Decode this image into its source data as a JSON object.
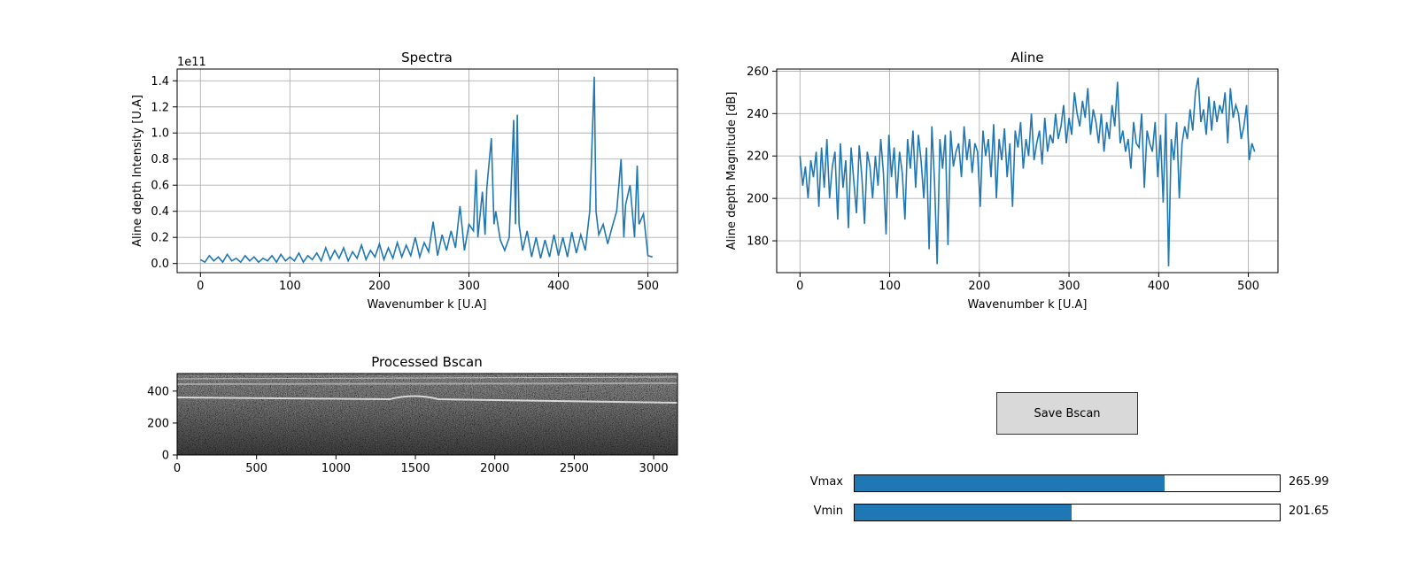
{
  "chart_data": [
    {
      "type": "line",
      "title": "Spectra",
      "xlabel": "Wavenumber k [U.A]",
      "ylabel": "Aline depth Intensity [U.A]",
      "y_offset_label": "1e11",
      "xlim": [
        -26,
        533
      ],
      "ylim": [
        -0.07,
        1.49
      ],
      "x_ticks": [
        0,
        100,
        200,
        300,
        400,
        500
      ],
      "y_ticks": [
        "0.0",
        "0.2",
        "0.4",
        "0.6",
        "0.8",
        "1.0",
        "1.2",
        "1.4"
      ],
      "grid": true,
      "series": [
        {
          "color": "#1f77b4",
          "x": [
            0,
            5,
            10,
            15,
            20,
            25,
            30,
            35,
            40,
            45,
            50,
            55,
            60,
            65,
            70,
            75,
            80,
            85,
            90,
            95,
            100,
            105,
            110,
            115,
            120,
            125,
            130,
            135,
            140,
            145,
            150,
            155,
            160,
            165,
            170,
            175,
            180,
            185,
            190,
            195,
            200,
            205,
            210,
            215,
            220,
            225,
            230,
            235,
            240,
            245,
            250,
            255,
            260,
            265,
            270,
            275,
            280,
            285,
            290,
            295,
            300,
            305,
            308,
            310,
            315,
            318,
            320,
            325,
            328,
            330,
            335,
            340,
            345,
            350,
            352,
            354,
            356,
            360,
            365,
            370,
            375,
            380,
            385,
            390,
            395,
            400,
            405,
            410,
            415,
            420,
            425,
            430,
            435,
            440,
            442,
            445,
            450,
            455,
            460,
            465,
            470,
            473,
            475,
            480,
            485,
            488,
            490,
            495,
            500,
            505
          ],
          "y": [
            0.03,
            0.01,
            0.06,
            0.02,
            0.05,
            0.01,
            0.07,
            0.02,
            0.04,
            0.01,
            0.06,
            0.02,
            0.05,
            0.01,
            0.04,
            0.02,
            0.06,
            0.01,
            0.07,
            0.02,
            0.05,
            0.02,
            0.08,
            0.01,
            0.06,
            0.03,
            0.08,
            0.02,
            0.12,
            0.03,
            0.1,
            0.04,
            0.12,
            0.02,
            0.09,
            0.04,
            0.14,
            0.03,
            0.1,
            0.05,
            0.15,
            0.03,
            0.12,
            0.04,
            0.16,
            0.05,
            0.14,
            0.06,
            0.2,
            0.05,
            0.16,
            0.09,
            0.32,
            0.06,
            0.22,
            0.1,
            0.25,
            0.12,
            0.44,
            0.1,
            0.3,
            0.25,
            0.72,
            0.2,
            0.55,
            0.22,
            0.58,
            0.96,
            0.3,
            0.4,
            0.18,
            0.1,
            0.2,
            1.1,
            0.3,
            1.14,
            0.3,
            0.1,
            0.25,
            0.05,
            0.2,
            0.04,
            0.18,
            0.05,
            0.22,
            0.06,
            0.2,
            0.05,
            0.24,
            0.08,
            0.22,
            0.1,
            0.4,
            1.43,
            0.4,
            0.22,
            0.3,
            0.15,
            0.28,
            0.4,
            0.8,
            0.2,
            0.45,
            0.6,
            0.2,
            0.75,
            0.3,
            0.38,
            0.06,
            0.05
          ]
        }
      ]
    },
    {
      "type": "line",
      "title": "Aline",
      "xlabel": "Wavenumber k [U.A]",
      "ylabel": "Aline depth Magnitude [dB]",
      "xlim": [
        -26,
        533
      ],
      "ylim": [
        165,
        261
      ],
      "x_ticks": [
        0,
        100,
        200,
        300,
        400,
        500
      ],
      "y_ticks": [
        "180",
        "200",
        "220",
        "240",
        "260"
      ],
      "grid": true,
      "series": [
        {
          "color": "#1f77b4",
          "x": [
            0,
            3,
            6,
            9,
            12,
            15,
            18,
            21,
            24,
            27,
            30,
            33,
            36,
            39,
            42,
            45,
            48,
            51,
            54,
            57,
            60,
            63,
            66,
            69,
            72,
            75,
            78,
            81,
            84,
            87,
            90,
            93,
            96,
            99,
            102,
            105,
            108,
            111,
            114,
            117,
            120,
            123,
            126,
            129,
            132,
            135,
            138,
            141,
            144,
            147,
            150,
            153,
            156,
            159,
            162,
            165,
            168,
            171,
            174,
            177,
            180,
            183,
            186,
            189,
            192,
            195,
            198,
            201,
            204,
            207,
            210,
            213,
            216,
            219,
            222,
            225,
            228,
            231,
            234,
            237,
            240,
            243,
            246,
            249,
            252,
            255,
            258,
            261,
            264,
            267,
            270,
            273,
            276,
            279,
            282,
            285,
            288,
            291,
            294,
            297,
            300,
            303,
            306,
            309,
            312,
            315,
            318,
            321,
            324,
            327,
            330,
            333,
            336,
            339,
            342,
            345,
            348,
            351,
            354,
            357,
            360,
            363,
            366,
            369,
            372,
            375,
            378,
            381,
            384,
            387,
            390,
            393,
            396,
            399,
            402,
            405,
            408,
            411,
            414,
            417,
            420,
            423,
            426,
            429,
            432,
            435,
            438,
            441,
            444,
            447,
            450,
            453,
            456,
            459,
            462,
            465,
            468,
            471,
            474,
            477,
            480,
            483,
            486,
            489,
            492,
            495,
            498,
            501,
            504,
            507
          ],
          "y": [
            220,
            206,
            215,
            200,
            218,
            210,
            222,
            196,
            224,
            205,
            228,
            200,
            215,
            222,
            190,
            226,
            205,
            218,
            186,
            224,
            208,
            193,
            225,
            210,
            188,
            222,
            215,
            200,
            220,
            206,
            228,
            212,
            183,
            230,
            210,
            224,
            200,
            222,
            212,
            190,
            228,
            214,
            232,
            205,
            230,
            218,
            200,
            224,
            176,
            234,
            208,
            169,
            228,
            214,
            230,
            178,
            232,
            215,
            222,
            226,
            210,
            234,
            218,
            228,
            212,
            226,
            222,
            196,
            232,
            220,
            228,
            210,
            235,
            200,
            228,
            218,
            233,
            210,
            226,
            196,
            232,
            224,
            236,
            214,
            228,
            220,
            240,
            218,
            226,
            232,
            216,
            238,
            222,
            230,
            226,
            240,
            228,
            234,
            244,
            226,
            238,
            230,
            250,
            240,
            234,
            246,
            238,
            252,
            230,
            242,
            236,
            226,
            240,
            222,
            236,
            228,
            244,
            234,
            255,
            226,
            232,
            222,
            228,
            214,
            236,
            226,
            224,
            240,
            205,
            232,
            226,
            222,
            236,
            210,
            230,
            198,
            240,
            168,
            228,
            218,
            236,
            200,
            226,
            234,
            228,
            242,
            232,
            250,
            257,
            236,
            242,
            230,
            248,
            232,
            246,
            236,
            244,
            240,
            250,
            226,
            252,
            238,
            244,
            240,
            228,
            234,
            244,
            218,
            226,
            222
          ]
        }
      ]
    },
    {
      "type": "heatmap",
      "title": "Processed Bscan",
      "xlim": [
        0,
        3150
      ],
      "ylim": [
        0,
        510
      ],
      "x_ticks": [
        "0",
        "500",
        "1000",
        "1500",
        "2000",
        "2500",
        "3000"
      ],
      "y_ticks": [
        "0",
        "200",
        "400"
      ],
      "colormap": "gray"
    }
  ],
  "controls": {
    "save_button": "Save Bscan",
    "sliders": [
      {
        "label": "Vmax",
        "value": "265.99",
        "fraction": 0.73
      },
      {
        "label": "Vmin",
        "value": "201.65",
        "fraction": 0.51
      }
    ],
    "accent_color": "#1f77b4"
  }
}
